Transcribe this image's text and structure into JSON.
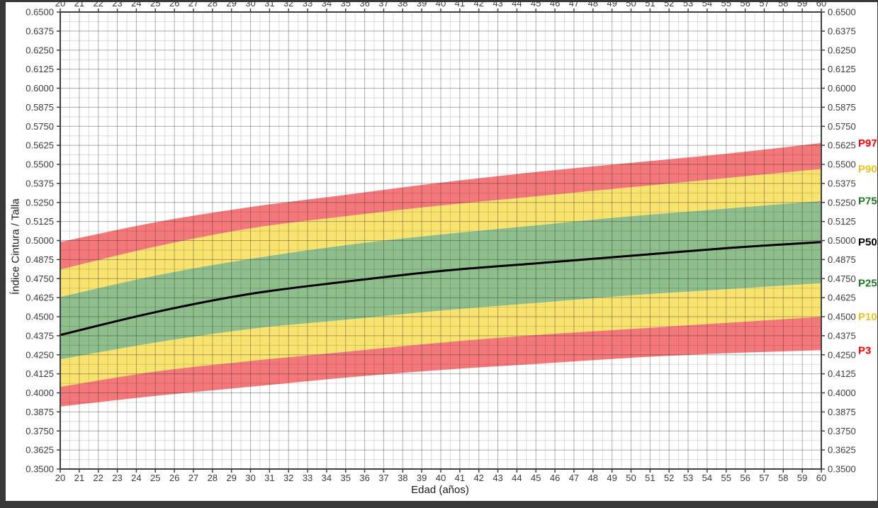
{
  "window": {
    "frame_color": "#383838",
    "surface_color": "#ffffff"
  },
  "chart_data": {
    "type": "area",
    "title": "",
    "xlabel": "Edad (años)",
    "ylabel": "Índice Cintura / Talla",
    "xlim": [
      20,
      60
    ],
    "ylim": [
      0.35,
      0.65
    ],
    "x_major_step": 1,
    "x_minor_step": 0.5,
    "y_major_step": 0.0125,
    "y_minor_step": 0.00625,
    "y_tick_decimals": 4,
    "grid": true,
    "axes_with_tick_labels": [
      "top",
      "bottom",
      "left",
      "right"
    ],
    "legend_position": "right-margin",
    "x": [
      20,
      25,
      30,
      35,
      40,
      45,
      50,
      55,
      60
    ],
    "series": [
      {
        "name": "P3",
        "label_color": "#ff0000",
        "values": [
          0.391,
          0.398,
          0.404,
          0.41,
          0.415,
          0.419,
          0.423,
          0.426,
          0.428
        ]
      },
      {
        "name": "P10",
        "label_color": "#eec21c",
        "values": [
          0.404,
          0.414,
          0.421,
          0.427,
          0.433,
          0.438,
          0.442,
          0.446,
          0.45
        ]
      },
      {
        "name": "P25",
        "label_color": "#1f7a1f",
        "values": [
          0.422,
          0.433,
          0.442,
          0.448,
          0.454,
          0.459,
          0.464,
          0.468,
          0.472
        ]
      },
      {
        "name": "P50",
        "label_color": "#000000",
        "values": [
          0.438,
          0.453,
          0.465,
          0.473,
          0.48,
          0.485,
          0.49,
          0.495,
          0.499
        ]
      },
      {
        "name": "P75",
        "label_color": "#1f7a1f",
        "values": [
          0.463,
          0.477,
          0.488,
          0.497,
          0.504,
          0.51,
          0.516,
          0.521,
          0.526
        ]
      },
      {
        "name": "P90",
        "label_color": "#eec21c",
        "values": [
          0.481,
          0.496,
          0.508,
          0.516,
          0.523,
          0.529,
          0.535,
          0.541,
          0.547
        ]
      },
      {
        "name": "P97",
        "label_color": "#ff0000",
        "values": [
          0.499,
          0.512,
          0.522,
          0.53,
          0.538,
          0.545,
          0.551,
          0.557,
          0.564
        ]
      }
    ],
    "median_series": "P50",
    "median_color": "#000000",
    "bands": [
      {
        "from": "P3",
        "to": "P10",
        "color": "#f4787a"
      },
      {
        "from": "P10",
        "to": "P25",
        "color": "#f8e36e"
      },
      {
        "from": "P25",
        "to": "P75",
        "color": "#8dbe8b"
      },
      {
        "from": "P75",
        "to": "P90",
        "color": "#f8e36e"
      },
      {
        "from": "P90",
        "to": "P97",
        "color": "#f4787a"
      }
    ],
    "style": {
      "axis_color": "#3f3f3f",
      "major_grid_color": "rgba(40,40,40,0.38)",
      "minor_grid_color": "rgba(40,40,40,0.16)",
      "tick_label_color": "#3c3c3c"
    }
  }
}
